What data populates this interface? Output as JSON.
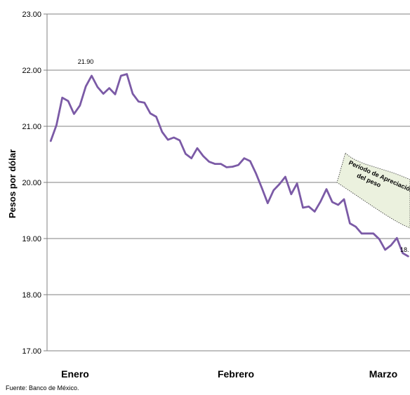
{
  "chart_data": {
    "type": "line",
    "ylabel": "Pesos por dólar",
    "ylim": [
      17.0,
      23.0
    ],
    "yticks": [
      "17.00",
      "18.00",
      "19.00",
      "20.00",
      "21.00",
      "22.00",
      "23.00"
    ],
    "xticks": [
      "Enero",
      "Febrero",
      "Marzo"
    ],
    "grid": true,
    "series": [
      {
        "values": [
          20.73,
          21.02,
          21.51,
          21.45,
          21.22,
          21.37,
          21.71,
          21.9,
          21.7,
          21.58,
          21.68,
          21.57,
          21.9,
          21.93,
          21.58,
          21.44,
          21.42,
          21.23,
          21.17,
          20.9,
          20.76,
          20.8,
          20.75,
          20.51,
          20.43,
          20.61,
          20.47,
          20.37,
          20.33,
          20.33,
          20.27,
          20.28,
          20.31,
          20.43,
          20.38,
          20.16,
          19.9,
          19.63,
          19.86,
          19.97,
          20.1,
          19.79,
          19.98,
          19.55,
          19.57,
          19.48,
          19.66,
          19.88,
          19.65,
          19.6,
          19.7,
          19.27,
          19.21,
          19.09,
          19.09,
          19.09,
          18.99,
          18.8,
          18.88,
          19.01,
          18.74,
          18.68
        ]
      }
    ],
    "data_labels": [
      "21.90",
      "18."
    ],
    "annotation": "Periodo de Apreciación del peso"
  },
  "footer": {
    "source": "Fuente: Banco de México."
  },
  "colors": {
    "line": "#7B5AA6",
    "annotation_fill": "#EBF1DE",
    "grid": "#808080"
  }
}
